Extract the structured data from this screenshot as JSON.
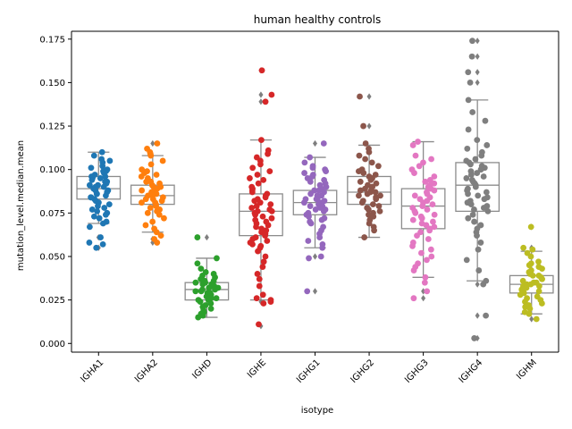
{
  "chart_data": {
    "type": "box+strip",
    "title": "human healthy controls",
    "xlabel": "isotype",
    "ylabel": "mutation_level.median.mean",
    "ylim": [
      -0.005,
      0.1795
    ],
    "yticks": [
      "0.000",
      "0.025",
      "0.050",
      "0.075",
      "0.100",
      "0.125",
      "0.150",
      "0.175"
    ],
    "ytick_values": [
      0.0,
      0.025,
      0.05,
      0.075,
      0.1,
      0.125,
      0.15,
      0.175
    ],
    "grid": false,
    "legend": "none",
    "categories": [
      "IGHA1",
      "IGHA2",
      "IGHD",
      "IGHE",
      "IGHG1",
      "IGHG2",
      "IGHG3",
      "IGHG4",
      "IGHM"
    ],
    "colors": [
      "#1f77b4",
      "#ff7f0e",
      "#2ca02c",
      "#d62728",
      "#9467bd",
      "#8c564b",
      "#e377c2",
      "#7f7f7f",
      "#bcbd22"
    ],
    "boxes": [
      {
        "category": "IGHA1",
        "whisker_low": 0.069,
        "q1": 0.083,
        "median": 0.089,
        "q3": 0.096,
        "whisker_high": 0.11,
        "outliers": [
          0.061,
          0.055
        ]
      },
      {
        "category": "IGHA2",
        "whisker_low": 0.064,
        "q1": 0.08,
        "median": 0.085,
        "q3": 0.091,
        "whisker_high": 0.108,
        "outliers": [
          0.115,
          0.06,
          0.058
        ]
      },
      {
        "category": "IGHD",
        "whisker_low": 0.015,
        "q1": 0.025,
        "median": 0.031,
        "q3": 0.035,
        "whisker_high": 0.049,
        "outliers": [
          0.061
        ]
      },
      {
        "category": "IGHE",
        "whisker_low": 0.025,
        "q1": 0.062,
        "median": 0.076,
        "q3": 0.086,
        "whisker_high": 0.117,
        "outliers": [
          0.157,
          0.143,
          0.139,
          0.024,
          0.01
        ]
      },
      {
        "category": "IGHG1",
        "whisker_low": 0.055,
        "q1": 0.074,
        "median": 0.081,
        "q3": 0.088,
        "whisker_high": 0.107,
        "outliers": [
          0.115,
          0.05,
          0.03
        ]
      },
      {
        "category": "IGHG2",
        "whisker_low": 0.061,
        "q1": 0.08,
        "median": 0.087,
        "q3": 0.096,
        "whisker_high": 0.114,
        "outliers": [
          0.142,
          0.125
        ]
      },
      {
        "category": "IGHG3",
        "whisker_low": 0.038,
        "q1": 0.066,
        "median": 0.079,
        "q3": 0.089,
        "whisker_high": 0.116,
        "outliers": [
          0.03,
          0.026
        ]
      },
      {
        "category": "IGHG4",
        "whisker_low": 0.036,
        "q1": 0.076,
        "median": 0.091,
        "q3": 0.104,
        "whisker_high": 0.14,
        "outliers": [
          0.174,
          0.165,
          0.156,
          0.15,
          0.034,
          0.016,
          0.003
        ]
      },
      {
        "category": "IGHM",
        "whisker_low": 0.017,
        "q1": 0.029,
        "median": 0.034,
        "q3": 0.039,
        "whisker_high": 0.053,
        "outliers": [
          0.067,
          0.055,
          0.014
        ]
      }
    ],
    "points": [
      [
        0.11,
        0.108,
        0.106,
        0.105,
        0.104,
        0.102,
        0.101,
        0.1,
        0.099,
        0.099,
        0.098,
        0.097,
        0.096,
        0.096,
        0.095,
        0.095,
        0.094,
        0.093,
        0.093,
        0.092,
        0.091,
        0.091,
        0.09,
        0.09,
        0.089,
        0.088,
        0.088,
        0.087,
        0.086,
        0.086,
        0.085,
        0.084,
        0.084,
        0.083,
        0.082,
        0.081,
        0.08,
        0.079,
        0.078,
        0.077,
        0.076,
        0.075,
        0.074,
        0.073,
        0.072,
        0.07,
        0.069,
        0.067,
        0.061,
        0.058,
        0.057,
        0.055
      ],
      [
        0.115,
        0.112,
        0.11,
        0.109,
        0.108,
        0.105,
        0.103,
        0.1,
        0.099,
        0.098,
        0.097,
        0.096,
        0.095,
        0.094,
        0.093,
        0.093,
        0.092,
        0.091,
        0.09,
        0.09,
        0.089,
        0.089,
        0.088,
        0.087,
        0.087,
        0.086,
        0.086,
        0.085,
        0.085,
        0.084,
        0.083,
        0.083,
        0.082,
        0.081,
        0.081,
        0.08,
        0.079,
        0.078,
        0.077,
        0.076,
        0.075,
        0.074,
        0.072,
        0.07,
        0.068,
        0.066,
        0.064,
        0.062,
        0.06,
        0.058
      ],
      [
        0.061,
        0.049,
        0.046,
        0.043,
        0.041,
        0.04,
        0.039,
        0.038,
        0.037,
        0.036,
        0.036,
        0.035,
        0.035,
        0.034,
        0.034,
        0.033,
        0.033,
        0.032,
        0.032,
        0.031,
        0.031,
        0.03,
        0.03,
        0.029,
        0.029,
        0.028,
        0.028,
        0.027,
        0.027,
        0.026,
        0.026,
        0.025,
        0.025,
        0.024,
        0.023,
        0.022,
        0.021,
        0.02,
        0.019,
        0.018,
        0.017,
        0.016,
        0.015
      ],
      [
        0.157,
        0.143,
        0.139,
        0.117,
        0.111,
        0.109,
        0.107,
        0.105,
        0.103,
        0.101,
        0.099,
        0.097,
        0.095,
        0.094,
        0.092,
        0.09,
        0.089,
        0.088,
        0.087,
        0.086,
        0.085,
        0.084,
        0.083,
        0.082,
        0.081,
        0.08,
        0.079,
        0.078,
        0.077,
        0.076,
        0.076,
        0.075,
        0.074,
        0.073,
        0.072,
        0.071,
        0.07,
        0.069,
        0.068,
        0.067,
        0.066,
        0.065,
        0.064,
        0.063,
        0.062,
        0.061,
        0.06,
        0.059,
        0.058,
        0.057,
        0.056,
        0.055,
        0.053,
        0.05,
        0.047,
        0.044,
        0.04,
        0.037,
        0.033,
        0.028,
        0.026,
        0.025,
        0.024,
        0.023,
        0.011
      ],
      [
        0.115,
        0.107,
        0.104,
        0.102,
        0.101,
        0.1,
        0.099,
        0.098,
        0.097,
        0.096,
        0.095,
        0.094,
        0.093,
        0.092,
        0.091,
        0.09,
        0.089,
        0.088,
        0.088,
        0.087,
        0.086,
        0.085,
        0.085,
        0.084,
        0.083,
        0.083,
        0.082,
        0.081,
        0.081,
        0.08,
        0.079,
        0.079,
        0.078,
        0.077,
        0.077,
        0.076,
        0.075,
        0.074,
        0.073,
        0.072,
        0.071,
        0.07,
        0.069,
        0.067,
        0.065,
        0.063,
        0.061,
        0.059,
        0.057,
        0.055,
        0.05,
        0.049,
        0.03
      ],
      [
        0.142,
        0.125,
        0.115,
        0.112,
        0.11,
        0.108,
        0.106,
        0.104,
        0.102,
        0.1,
        0.099,
        0.098,
        0.097,
        0.096,
        0.095,
        0.094,
        0.093,
        0.092,
        0.091,
        0.09,
        0.09,
        0.089,
        0.088,
        0.088,
        0.087,
        0.087,
        0.086,
        0.085,
        0.085,
        0.084,
        0.083,
        0.082,
        0.081,
        0.08,
        0.079,
        0.078,
        0.077,
        0.076,
        0.075,
        0.074,
        0.073,
        0.071,
        0.069,
        0.067,
        0.065,
        0.061
      ],
      [
        0.116,
        0.114,
        0.108,
        0.106,
        0.104,
        0.102,
        0.1,
        0.098,
        0.096,
        0.094,
        0.093,
        0.092,
        0.091,
        0.09,
        0.089,
        0.088,
        0.087,
        0.086,
        0.085,
        0.084,
        0.083,
        0.082,
        0.081,
        0.08,
        0.079,
        0.078,
        0.077,
        0.076,
        0.075,
        0.074,
        0.073,
        0.072,
        0.071,
        0.07,
        0.069,
        0.068,
        0.067,
        0.066,
        0.065,
        0.064,
        0.062,
        0.06,
        0.058,
        0.056,
        0.054,
        0.052,
        0.05,
        0.048,
        0.046,
        0.044,
        0.042,
        0.038,
        0.035,
        0.03,
        0.026
      ],
      [
        0.174,
        0.165,
        0.156,
        0.15,
        0.14,
        0.133,
        0.128,
        0.123,
        0.117,
        0.114,
        0.112,
        0.11,
        0.108,
        0.106,
        0.105,
        0.104,
        0.103,
        0.102,
        0.101,
        0.1,
        0.099,
        0.098,
        0.097,
        0.096,
        0.095,
        0.094,
        0.093,
        0.092,
        0.091,
        0.09,
        0.089,
        0.088,
        0.087,
        0.086,
        0.085,
        0.084,
        0.083,
        0.082,
        0.081,
        0.08,
        0.079,
        0.078,
        0.077,
        0.076,
        0.074,
        0.072,
        0.07,
        0.068,
        0.066,
        0.064,
        0.062,
        0.058,
        0.054,
        0.048,
        0.042,
        0.036,
        0.034,
        0.016,
        0.003
      ],
      [
        0.067,
        0.055,
        0.054,
        0.052,
        0.05,
        0.047,
        0.046,
        0.045,
        0.044,
        0.043,
        0.042,
        0.041,
        0.04,
        0.039,
        0.039,
        0.038,
        0.037,
        0.037,
        0.036,
        0.035,
        0.035,
        0.034,
        0.034,
        0.033,
        0.033,
        0.032,
        0.031,
        0.031,
        0.03,
        0.029,
        0.028,
        0.027,
        0.026,
        0.025,
        0.024,
        0.023,
        0.022,
        0.021,
        0.02,
        0.018,
        0.017,
        0.014
      ]
    ]
  }
}
